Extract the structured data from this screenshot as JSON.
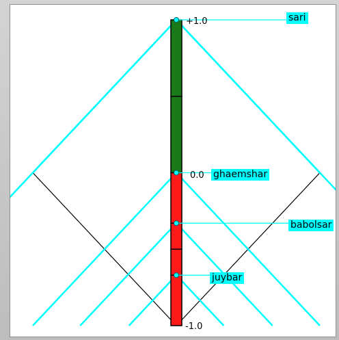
{
  "chart_data": {
    "type": "diagram",
    "scale": {
      "top_label": "+1.0",
      "middle_label": "0.0",
      "bottom_label": "-1.0",
      "max": 1.0,
      "min": -1.0
    },
    "bar_segments": [
      {
        "from": 1.0,
        "to": 0.5,
        "color": "#1a7a1a"
      },
      {
        "from": 0.5,
        "to": 0.0,
        "color": "#1a7a1a"
      },
      {
        "from": 0.0,
        "to": -0.33,
        "color": "#ff1a1a"
      },
      {
        "from": -0.33,
        "to": -0.5,
        "color": "#ff1a1a"
      },
      {
        "from": -0.5,
        "to": -0.67,
        "color": "#ff1a1a"
      },
      {
        "from": -0.67,
        "to": -1.0,
        "color": "#ff1a1a"
      }
    ],
    "nodes": [
      {
        "label": "sari",
        "value": 1.0
      },
      {
        "label": "ghaemshar",
        "value": 0.0
      },
      {
        "label": "babolsar",
        "value": -0.33
      },
      {
        "label": "juybar",
        "value": -0.67
      }
    ],
    "colors": {
      "link": "#00ffff",
      "frame": "#000000",
      "positive": "#1a7a1a",
      "negative": "#ff1a1a"
    }
  }
}
